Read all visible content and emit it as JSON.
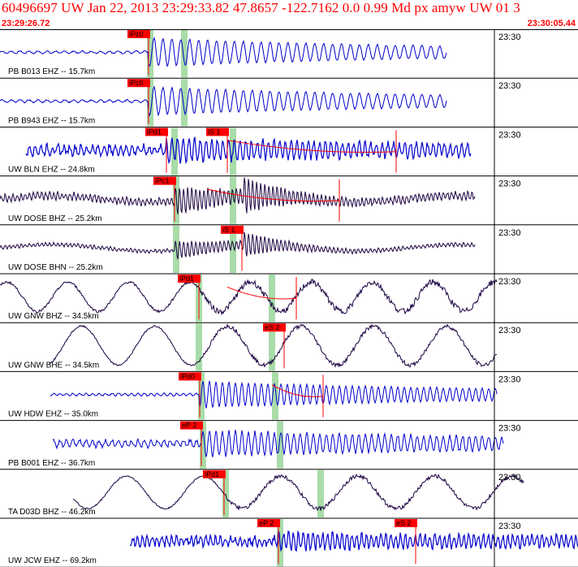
{
  "header": {
    "title": "60496697 UW Jan 22, 2013 23:29:33.82   47.8657 -122.7162  0.0 0.99 Md px amyw UW 01   3",
    "start_time": "23:29:26.72",
    "end_time": "23:30:05.44"
  },
  "tick_label": "23:30",
  "colors": {
    "accent": "#ff0000",
    "trace_blue": "#0000cc",
    "trace_dark": "#1a0040",
    "window": "#a8dca8"
  },
  "traces": [
    {
      "label": "PB B013 EHZ -- 15.7km",
      "color": "blue",
      "start": 0,
      "end": 550,
      "onset": 183,
      "amp": 16,
      "period": 11,
      "noise": 1.5,
      "style": "burst",
      "picks": [
        {
          "text": "iPc0",
          "x": 183,
          "type": "P"
        }
      ],
      "windows": [
        183,
        225
      ]
    },
    {
      "label": "PB B943 EHZ -- 15.7km",
      "color": "blue",
      "start": 0,
      "end": 550,
      "onset": 183,
      "amp": 16,
      "period": 11,
      "noise": 1.5,
      "style": "burst",
      "picks": [
        {
          "text": "iPc0",
          "x": 183,
          "type": "P"
        }
      ],
      "windows": [
        183,
        225
      ]
    },
    {
      "label": "UW BLN EHZ -- 24.8km",
      "color": "blue",
      "start": 32,
      "end": 580,
      "onset": 205,
      "amp": 10,
      "period": 7,
      "noise": 5,
      "style": "band",
      "picks": [
        {
          "text": "iPd1",
          "x": 205,
          "type": "P"
        },
        {
          "text": "iS 1",
          "x": 280,
          "type": "S"
        }
      ],
      "windows": [
        213,
        285
      ],
      "coda": [
        280,
        488
      ]
    },
    {
      "label": "UW DOSE BHZ -- 25.2km",
      "color": "dark",
      "start": 0,
      "end": 585,
      "onset": 215,
      "amp": 14,
      "period": 5,
      "noise": 4,
      "style": "double",
      "picks": [
        {
          "text": "iPc1",
          "x": 215,
          "type": "P"
        }
      ],
      "windows": [
        215,
        285
      ],
      "coda": [
        255,
        418
      ]
    },
    {
      "label": "UW DOSE BHN -- 25.2km",
      "color": "dark",
      "start": 0,
      "end": 585,
      "onset": 215,
      "amp": 10,
      "period": 5,
      "noise": 2,
      "style": "double",
      "picks": [
        {
          "text": "iS 1",
          "x": 298,
          "type": "S"
        }
      ],
      "windows": [
        215,
        285
      ]
    },
    {
      "label": "UW GNW BHZ -- 34.5km",
      "color": "dark",
      "start": 0,
      "end": 612,
      "onset": 245,
      "amp": 18,
      "period": 75,
      "noise": 3,
      "style": "swell",
      "picks": [
        {
          "text": "iPd1",
          "x": 245,
          "type": "P"
        }
      ],
      "windows": [
        243,
        333
      ],
      "coda": [
        280,
        365
      ]
    },
    {
      "label": "UW GNW BHE -- 34.5km",
      "color": "dark",
      "start": 60,
      "end": 612,
      "onset": 245,
      "amp": 24,
      "period": 90,
      "noise": 2,
      "style": "swell",
      "picks": [
        {
          "text": "eS 2",
          "x": 350,
          "type": "S"
        }
      ],
      "windows": [
        243,
        333
      ]
    },
    {
      "label": "UW HDW EHZ -- 35.0km",
      "color": "blue",
      "start": 62,
      "end": 612,
      "onset": 246,
      "amp": 15,
      "period": 8,
      "noise": 1.5,
      "style": "burst",
      "picks": [
        {
          "text": "iPd0",
          "x": 246,
          "type": "P"
        }
      ],
      "windows": [
        246,
        337
      ],
      "coda": [
        335,
        398
      ]
    },
    {
      "label": "PB B001 EHZ -- 36.7km",
      "color": "blue",
      "start": 65,
      "end": 620,
      "onset": 248,
      "amp": 12,
      "period": 8,
      "noise": 4,
      "style": "burst",
      "picks": [
        {
          "text": "eP 2",
          "x": 248,
          "type": "P"
        }
      ],
      "windows": [
        248,
        343
      ]
    },
    {
      "label": "TA D03D BHZ -- 46.2km",
      "color": "dark",
      "start": 90,
      "end": 645,
      "onset": 276,
      "amp": 20,
      "period": 95,
      "noise": 2,
      "style": "swell",
      "picks": [
        {
          "text": "iPd1",
          "x": 276,
          "type": "P"
        }
      ],
      "windows": [
        276,
        393
      ]
    },
    {
      "label": "UW JCW EHZ -- 69.2km",
      "color": "blue",
      "start": 160,
      "end": 712,
      "onset": 343,
      "amp": 6,
      "period": 6,
      "noise": 5,
      "style": "band",
      "picks": [
        {
          "text": "eP 2",
          "x": 343,
          "type": "P"
        },
        {
          "text": "eS 2",
          "x": 512,
          "type": "S"
        }
      ],
      "windows": [
        343
      ]
    }
  ]
}
